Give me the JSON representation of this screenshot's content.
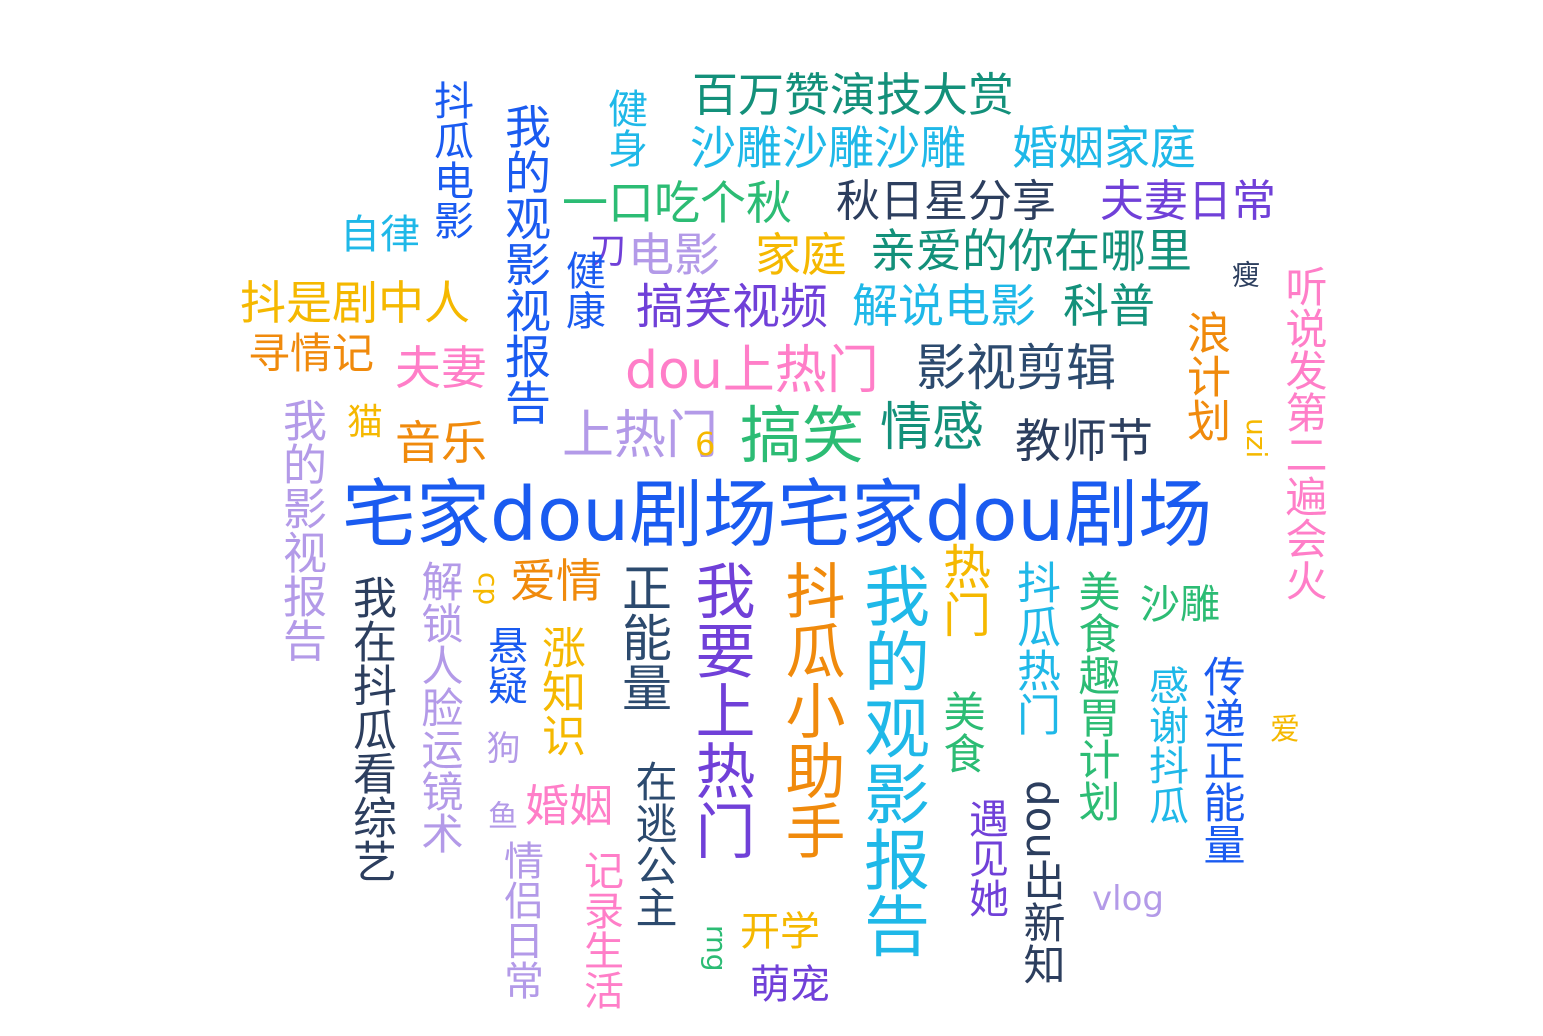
{
  "word_cloud": {
    "words": [
      {
        "text": "宅家dou剧场宅家dou剧场",
        "color": "#1a5bf0",
        "weight": 1.0
      },
      {
        "text": "我的观影报告",
        "color": "#1fb8e8",
        "weight": 0.7
      },
      {
        "text": "抖瓜小助手",
        "color": "#f08a0c",
        "weight": 0.7
      },
      {
        "text": "我要上热门",
        "color": "#7040d8",
        "weight": 0.7
      },
      {
        "text": "正能量",
        "color": "#2c4a6e",
        "weight": 0.55
      },
      {
        "text": "搞笑",
        "color": "#2cbc74",
        "weight": 0.6
      },
      {
        "text": "热门",
        "color": "#f5b800",
        "weight": 0.45
      },
      {
        "text": "上热门",
        "color": "#b39ae8",
        "weight": 0.5
      },
      {
        "text": "情感",
        "color": "#13907a",
        "weight": 0.5
      },
      {
        "text": "dou上热门",
        "color": "#ff7ec8",
        "weight": 0.5
      },
      {
        "text": "教师节",
        "color": "#2c3e5e",
        "weight": 0.45
      },
      {
        "text": "影视剪辑",
        "color": "#2c4a6e",
        "weight": 0.45
      },
      {
        "text": "搞笑视频",
        "color": "#7040d8",
        "weight": 0.45
      },
      {
        "text": "解说电影",
        "color": "#1fb8e8",
        "weight": 0.42
      },
      {
        "text": "科普",
        "color": "#13907a",
        "weight": 0.42
      },
      {
        "text": "亲爱的你在哪里",
        "color": "#13907a",
        "weight": 0.42
      },
      {
        "text": "家庭",
        "color": "#f5b800",
        "weight": 0.42
      },
      {
        "text": "电影",
        "color": "#b39ae8",
        "weight": 0.42
      },
      {
        "text": "刀",
        "color": "#7040d8",
        "weight": 0.3
      },
      {
        "text": "一口吃个秋",
        "color": "#2cbc74",
        "weight": 0.45
      },
      {
        "text": "秋日星分享",
        "color": "#2c3e5e",
        "weight": 0.42
      },
      {
        "text": "夫妻日常",
        "color": "#7040d8",
        "weight": 0.42
      },
      {
        "text": "沙雕沙雕沙雕",
        "color": "#1fb8e8",
        "weight": 0.45
      },
      {
        "text": "婚姻家庭",
        "color": "#1fb8e8",
        "weight": 0.45
      },
      {
        "text": "百万赞演技大赏",
        "color": "#13907a",
        "weight": 0.45
      },
      {
        "text": "健身",
        "color": "#1fb8e8",
        "weight": 0.35
      },
      {
        "text": "我的观影视报告",
        "color": "#1a5bf0",
        "weight": 0.45
      },
      {
        "text": "抖瓜电影",
        "color": "#1a5bf0",
        "weight": 0.38
      },
      {
        "text": "自律",
        "color": "#1fb8e8",
        "weight": 0.35
      },
      {
        "text": "抖是剧中人",
        "color": "#f5b800",
        "weight": 0.42
      },
      {
        "text": "寻情记",
        "color": "#f08a0c",
        "weight": 0.38
      },
      {
        "text": "夫妻",
        "color": "#ff7ec8",
        "weight": 0.42
      },
      {
        "text": "猫",
        "color": "#f5b800",
        "weight": 0.3
      },
      {
        "text": "音乐",
        "color": "#f08a0c",
        "weight": 0.42
      },
      {
        "text": "健康",
        "color": "#1a5bf0",
        "weight": 0.38
      },
      {
        "text": "我的影视报告",
        "color": "#b39ae8",
        "weight": 0.42
      },
      {
        "text": "我在抖瓜看综艺",
        "color": "#2c3e5e",
        "weight": 0.42
      },
      {
        "text": "解锁人脸运镜术",
        "color": "#b39ae8",
        "weight": 0.42
      },
      {
        "text": "cp",
        "color": "#f5b800",
        "weight": 0.28
      },
      {
        "text": "爱情",
        "color": "#f08a0c",
        "weight": 0.42
      },
      {
        "text": "悬疑",
        "color": "#1a5bf0",
        "weight": 0.35
      },
      {
        "text": "狗",
        "color": "#b39ae8",
        "weight": 0.3
      },
      {
        "text": "涨知识",
        "color": "#f5b800",
        "weight": 0.4
      },
      {
        "text": "婚姻",
        "color": "#ff7ec8",
        "weight": 0.4
      },
      {
        "text": "鱼",
        "color": "#b39ae8",
        "weight": 0.26
      },
      {
        "text": "情侣日常",
        "color": "#b39ae8",
        "weight": 0.38
      },
      {
        "text": "记录生活",
        "color": "#ff7ec8",
        "weight": 0.38
      },
      {
        "text": "在逃公主",
        "color": "#2c4a6e",
        "weight": 0.38
      },
      {
        "text": "开学",
        "color": "#f5b800",
        "weight": 0.38
      },
      {
        "text": "rng",
        "color": "#2cbc74",
        "weight": 0.28
      },
      {
        "text": "萌宠",
        "color": "#7040d8",
        "weight": 0.38
      },
      {
        "text": "美食",
        "color": "#2cbc74",
        "weight": 0.38
      },
      {
        "text": "遇见她",
        "color": "#7040d8",
        "weight": 0.38
      },
      {
        "text": "抖瓜热门",
        "color": "#1fb8e8",
        "weight": 0.42
      },
      {
        "text": "dou出新知",
        "color": "#2c3e5e",
        "weight": 0.42
      },
      {
        "text": "美食趣胃计划",
        "color": "#2cbc74",
        "weight": 0.42
      },
      {
        "text": "沙雕",
        "color": "#2cbc74",
        "weight": 0.35
      },
      {
        "text": "感谢抖瓜",
        "color": "#1fb8e8",
        "weight": 0.4
      },
      {
        "text": "vlog",
        "color": "#b39ae8",
        "weight": 0.3
      },
      {
        "text": "传递正能量",
        "color": "#1a5bf0",
        "weight": 0.4
      },
      {
        "text": "浪计划",
        "color": "#f08a0c",
        "weight": 0.42
      },
      {
        "text": "uzi",
        "color": "#f5b800",
        "weight": 0.26
      },
      {
        "text": "听说发第二遍会火",
        "color": "#ff7ec8",
        "weight": 0.42
      },
      {
        "text": "瘦",
        "color": "#2c3e5e",
        "weight": 0.26
      },
      {
        "text": "6",
        "color": "#f5b800",
        "weight": 0.26
      },
      {
        "text": "爱",
        "color": "#f5b800",
        "weight": 0.26
      }
    ]
  }
}
